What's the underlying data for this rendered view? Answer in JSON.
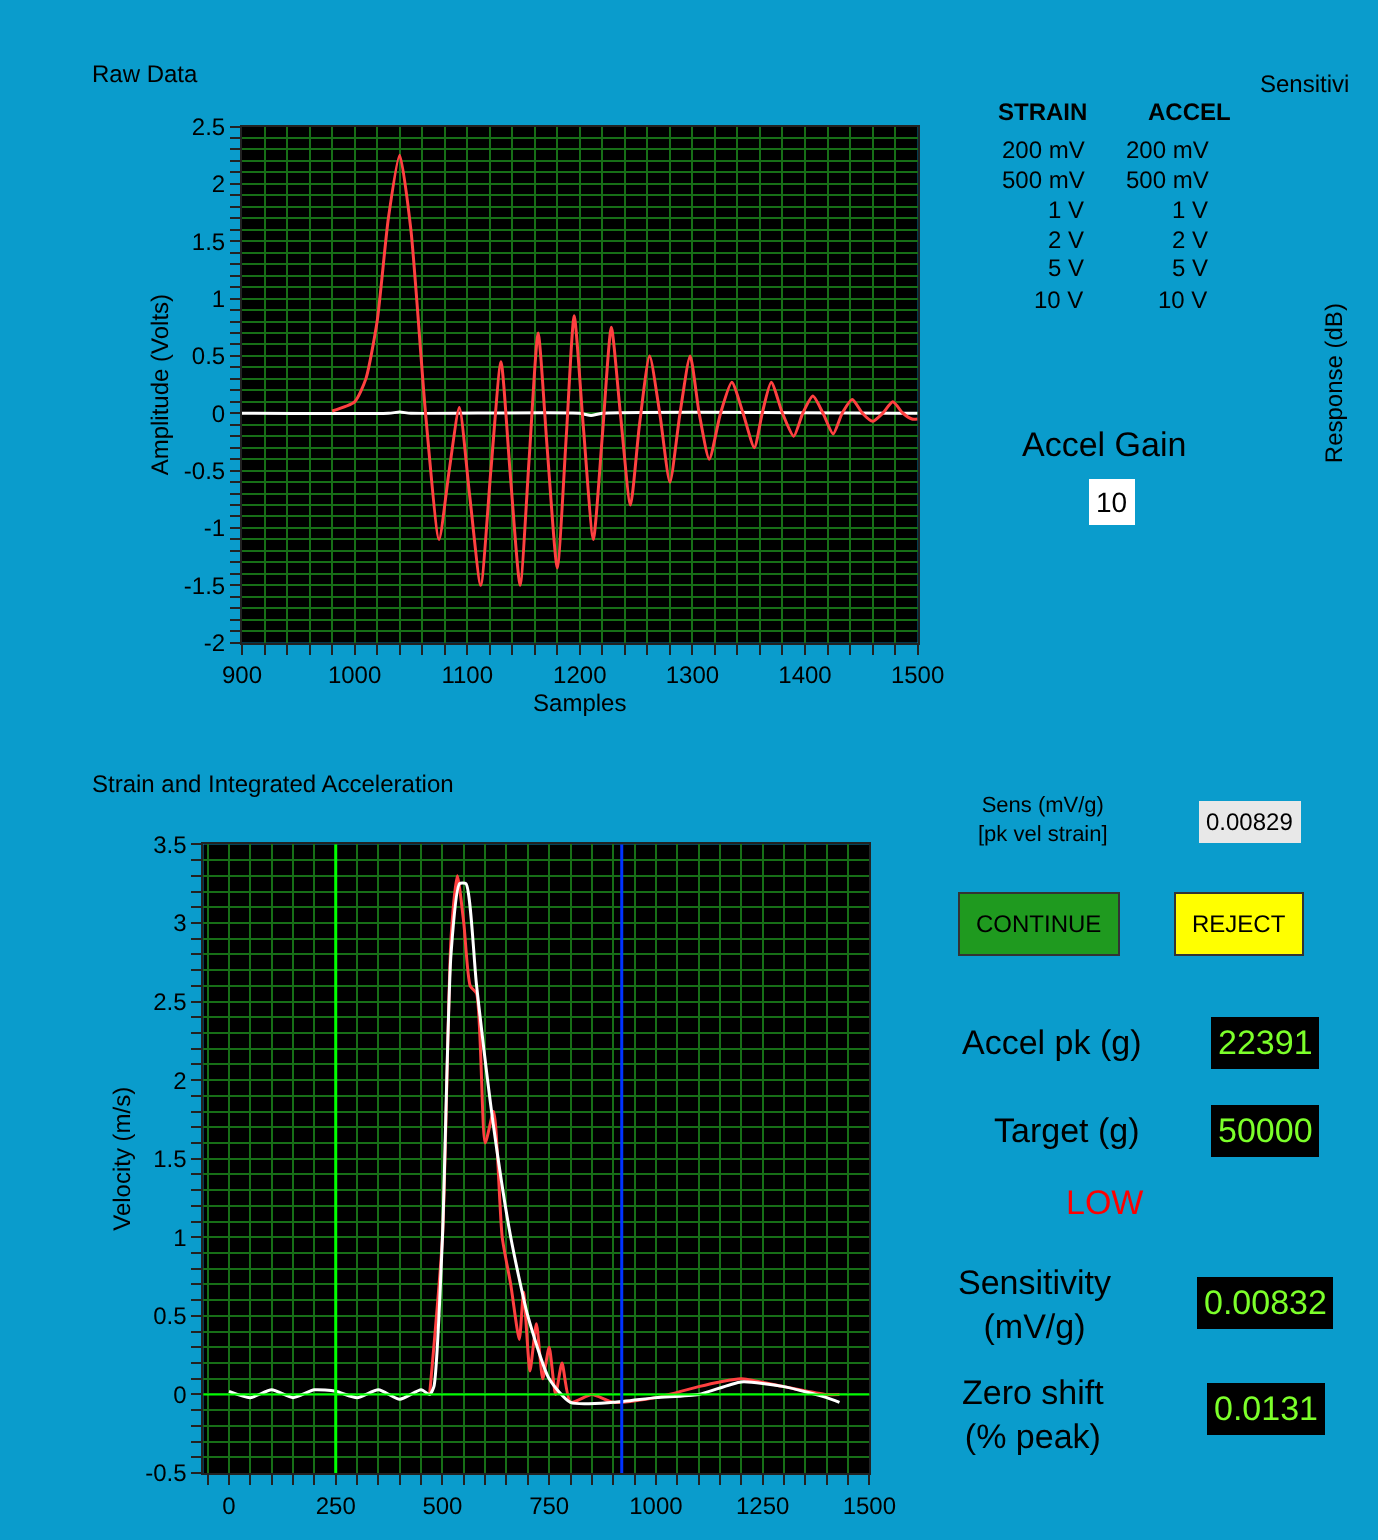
{
  "chart_data": [
    {
      "type": "line",
      "title": "Raw Data",
      "xlabel": "Samples",
      "ylabel": "Amplitude (Volts)",
      "xlim": [
        900,
        1500
      ],
      "xticks": [
        900,
        {
          "value": 920,
          "label": null
        },
        {
          "value": 940,
          "label": null
        },
        {
          "value": 960,
          "label": null
        },
        {
          "value": 980,
          "label": null
        },
        1000,
        {
          "value": 1020,
          "label": null
        },
        {
          "value": 1040,
          "label": null
        },
        {
          "value": 1060,
          "label": null
        },
        {
          "value": 1080,
          "label": null
        },
        1100,
        {
          "value": 1120,
          "label": null
        },
        {
          "value": 1140,
          "label": null
        },
        {
          "value": 1160,
          "label": null
        },
        {
          "value": 1180,
          "label": null
        },
        1200,
        {
          "value": 1220,
          "label": null
        },
        {
          "value": 1240,
          "label": null
        },
        {
          "value": 1260,
          "label": null
        },
        {
          "value": 1280,
          "label": null
        },
        1300,
        {
          "value": 1320,
          "label": null
        },
        {
          "value": 1340,
          "label": null
        },
        {
          "value": 1360,
          "label": null
        },
        {
          "value": 1380,
          "label": null
        },
        1400,
        {
          "value": 1420,
          "label": null
        },
        {
          "value": 1440,
          "label": null
        },
        {
          "value": 1460,
          "label": null
        },
        {
          "value": 1480,
          "label": null
        },
        1500
      ],
      "ylim": [
        -2,
        2.5
      ],
      "yticks": [
        -2,
        {
          "value": -1.9,
          "label": null
        },
        {
          "value": -1.8,
          "label": null
        },
        {
          "value": -1.7,
          "label": null
        },
        {
          "value": -1.6,
          "label": null
        },
        -1.5,
        {
          "value": -1.4,
          "label": null
        },
        {
          "value": -1.3,
          "label": null
        },
        {
          "value": -1.2,
          "label": null
        },
        {
          "value": -1.1,
          "label": null
        },
        -1,
        {
          "value": -0.9,
          "label": null
        },
        {
          "value": -0.8,
          "label": null
        },
        {
          "value": -0.7,
          "label": null
        },
        {
          "value": -0.6,
          "label": null
        },
        -0.5,
        {
          "value": -0.4,
          "label": null
        },
        {
          "value": -0.3,
          "label": null
        },
        {
          "value": -0.2,
          "label": null
        },
        {
          "value": -0.1,
          "label": null
        },
        0,
        {
          "value": 0.1,
          "label": null
        },
        {
          "value": 0.2,
          "label": null
        },
        {
          "value": 0.3,
          "label": null
        },
        {
          "value": 0.4,
          "label": null
        },
        0.5,
        {
          "value": 0.6,
          "label": null
        },
        {
          "value": 0.7,
          "label": null
        },
        {
          "value": 0.8,
          "label": null
        },
        {
          "value": 0.9,
          "label": null
        },
        1,
        {
          "value": 1.1,
          "label": null
        },
        {
          "value": 1.2,
          "label": null
        },
        {
          "value": 1.3,
          "label": null
        },
        {
          "value": 1.4,
          "label": null
        },
        1.5,
        {
          "value": 1.6,
          "label": null
        },
        {
          "value": 1.7,
          "label": null
        },
        {
          "value": 1.8,
          "label": null
        },
        {
          "value": 1.9,
          "label": null
        },
        2,
        {
          "value": 2.1,
          "label": null
        },
        {
          "value": 2.2,
          "label": null
        },
        {
          "value": 2.3,
          "label": null
        },
        {
          "value": 2.4,
          "label": null
        },
        2.5
      ],
      "grid": true,
      "series": [
        {
          "color": "#ffffff",
          "x": [
            900,
            1030,
            1040,
            1050,
            1200,
            1210,
            1220,
            1500
          ],
          "values": [
            0,
            0,
            0.01,
            0,
            0,
            -0.02,
            0,
            0
          ]
        },
        {
          "color": "#ff4040",
          "x": [
            980,
            1000,
            1010,
            1020,
            1030,
            1040,
            1050,
            1063,
            1075,
            1084,
            1093,
            1102,
            1112,
            1121,
            1130,
            1138,
            1147,
            1155,
            1163,
            1171,
            1180,
            1188,
            1195,
            1203,
            1212,
            1220,
            1228,
            1236,
            1245,
            1253,
            1262,
            1271,
            1280,
            1289,
            1298,
            1306,
            1315,
            1325,
            1335,
            1345,
            1355,
            1362,
            1370,
            1380,
            1390,
            1398,
            1407,
            1416,
            1425,
            1433,
            1442,
            1451,
            1460,
            1469,
            1478,
            1487,
            1495,
            1500
          ],
          "values": [
            0.02,
            0.1,
            0.3,
            0.8,
            1.7,
            2.25,
            1.6,
            0,
            -1.1,
            -0.5,
            0.05,
            -0.7,
            -1.5,
            -0.5,
            0.45,
            -0.5,
            -1.5,
            -0.4,
            0.7,
            -0.3,
            -1.35,
            -0.2,
            0.85,
            -0.1,
            -1.1,
            -0.2,
            0.75,
            0,
            -0.8,
            -0.1,
            0.5,
            0,
            -0.6,
            0,
            0.5,
            0,
            -0.4,
            0,
            0.27,
            0,
            -0.3,
            0,
            0.27,
            0,
            -0.2,
            0,
            0.15,
            0,
            -0.18,
            0,
            0.12,
            0,
            -0.07,
            0,
            0.1,
            0,
            -0.05,
            -0.05
          ]
        }
      ]
    },
    {
      "type": "line",
      "title": "Strain and Integrated Acceleration",
      "ylabel": "Velocity (m/s)",
      "xlim": [
        -60,
        1500
      ],
      "xticks": [
        {
          "value": -50,
          "label": null
        },
        0,
        {
          "value": 50,
          "label": null
        },
        {
          "value": 100,
          "label": null
        },
        {
          "value": 150,
          "label": null
        },
        {
          "value": 200,
          "label": null
        },
        250,
        {
          "value": 300,
          "label": null
        },
        {
          "value": 350,
          "label": null
        },
        {
          "value": 400,
          "label": null
        },
        {
          "value": 450,
          "label": null
        },
        500,
        {
          "value": 550,
          "label": null
        },
        {
          "value": 600,
          "label": null
        },
        {
          "value": 650,
          "label": null
        },
        {
          "value": 700,
          "label": null
        },
        750,
        {
          "value": 800,
          "label": null
        },
        {
          "value": 850,
          "label": null
        },
        {
          "value": 900,
          "label": null
        },
        {
          "value": 950,
          "label": null
        },
        1000,
        {
          "value": 1050,
          "label": null
        },
        {
          "value": 1100,
          "label": null
        },
        {
          "value": 1150,
          "label": null
        },
        {
          "value": 1200,
          "label": null
        },
        1250,
        {
          "value": 1300,
          "label": null
        },
        {
          "value": 1350,
          "label": null
        },
        {
          "value": 1400,
          "label": null
        },
        {
          "value": 1450,
          "label": null
        },
        1500
      ],
      "ylim": [
        -0.5,
        3.5
      ],
      "yticks": [
        -0.5,
        {
          "value": -0.4,
          "label": null
        },
        {
          "value": -0.3,
          "label": null
        },
        {
          "value": -0.2,
          "label": null
        },
        {
          "value": -0.1,
          "label": null
        },
        0,
        {
          "value": 0.1,
          "label": null
        },
        {
          "value": 0.2,
          "label": null
        },
        {
          "value": 0.3,
          "label": null
        },
        {
          "value": 0.4,
          "label": null
        },
        0.5,
        {
          "value": 0.6,
          "label": null
        },
        {
          "value": 0.7,
          "label": null
        },
        {
          "value": 0.8,
          "label": null
        },
        {
          "value": 0.9,
          "label": null
        },
        1,
        {
          "value": 1.1,
          "label": null
        },
        {
          "value": 1.2,
          "label": null
        },
        {
          "value": 1.3,
          "label": null
        },
        {
          "value": 1.4,
          "label": null
        },
        1.5,
        {
          "value": 1.6,
          "label": null
        },
        {
          "value": 1.7,
          "label": null
        },
        {
          "value": 1.8,
          "label": null
        },
        {
          "value": 1.9,
          "label": null
        },
        2,
        {
          "value": 2.1,
          "label": null
        },
        {
          "value": 2.2,
          "label": null
        },
        {
          "value": 2.3,
          "label": null
        },
        {
          "value": 2.4,
          "label": null
        },
        2.5,
        {
          "value": 2.6,
          "label": null
        },
        {
          "value": 2.7,
          "label": null
        },
        {
          "value": 2.8,
          "label": null
        },
        {
          "value": 2.9,
          "label": null
        },
        3,
        {
          "value": 3.1,
          "label": null
        },
        {
          "value": 3.2,
          "label": null
        },
        {
          "value": 3.3,
          "label": null
        },
        {
          "value": 3.4,
          "label": null
        },
        3.5
      ],
      "grid": true,
      "ref_lines": [
        {
          "axis": "y",
          "value": 0,
          "color": "#00ff00"
        },
        {
          "axis": "x",
          "value": 250,
          "color": "#00ff00"
        },
        {
          "axis": "x",
          "value": 920,
          "color": "#0033ff"
        }
      ],
      "series": [
        {
          "color": "#ff4040",
          "x": [
            470,
            500,
            520,
            535,
            550,
            565,
            580,
            600,
            620,
            640,
            660,
            680,
            690,
            705,
            720,
            735,
            750,
            765,
            780,
            800,
            850,
            900,
            1000,
            1100,
            1150,
            1200,
            1300,
            1400,
            1430
          ],
          "values": [
            0,
            1.0,
            2.9,
            3.3,
            3.0,
            2.6,
            2.55,
            1.6,
            1.8,
            1.0,
            0.7,
            0.35,
            0.65,
            0.15,
            0.45,
            0.1,
            0.3,
            0,
            0.2,
            -0.05,
            0,
            -0.05,
            -0.02,
            0.05,
            0.08,
            0.1,
            0.05,
            0,
            0
          ]
        },
        {
          "color": "#ffffff",
          "x": [
            0,
            50,
            100,
            150,
            200,
            250,
            300,
            350,
            400,
            450,
            470,
            480,
            500,
            520,
            540,
            555,
            580,
            620,
            660,
            700,
            750,
            800,
            900,
            1000,
            1100,
            1200,
            1300,
            1400,
            1430
          ],
          "values": [
            0.02,
            -0.02,
            0.03,
            -0.02,
            0.03,
            0.02,
            -0.02,
            0.03,
            -0.03,
            0.03,
            0,
            0.05,
            1.0,
            2.8,
            3.25,
            3.25,
            2.6,
            1.7,
            1.0,
            0.5,
            0.1,
            -0.05,
            -0.05,
            -0.02,
            0,
            0.08,
            0.05,
            -0.02,
            -0.05
          ]
        }
      ]
    },
    {
      "type": "other",
      "annotations": [
        "STRAIN",
        "ACCEL",
        "200 mV",
        "500 mV",
        "1 V",
        "2 V",
        "5 V",
        "10 V",
        "200 mV",
        "500 mV",
        "1 V",
        "2 V",
        "5 V",
        "10 V",
        "Accel Gain",
        "10",
        "Sensitivi",
        "Response (dB)",
        "Sens (mV/g)\n[pk vel strain]",
        "0.00829",
        "CONTINUE",
        "REJECT",
        "Accel pk (g)",
        "22391",
        "Target (g)",
        "50000",
        "LOW",
        "Sensitivity\n(mV/g)",
        "0.00832",
        "Zero shift\n(% peak)",
        "0.0131"
      ]
    }
  ]
}
